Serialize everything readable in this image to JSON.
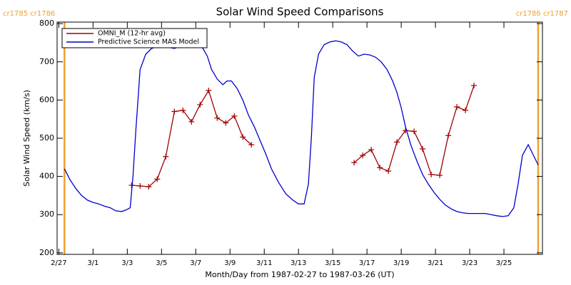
{
  "chart_data": {
    "type": "line",
    "title": "Solar Wind Speed Comparisons",
    "x_label": "Month/Day from 1987-02-27 to 1987-03-26 (UT)",
    "y_label": "Solar Wind Speed (km/s)",
    "xlim": [
      -0.1,
      28.25
    ],
    "ylim": [
      196,
      804
    ],
    "xticks": [
      {
        "value": 0,
        "label": "2/27"
      },
      {
        "value": 2,
        "label": "3/1"
      },
      {
        "value": 4,
        "label": "3/3"
      },
      {
        "value": 6,
        "label": "3/5"
      },
      {
        "value": 8,
        "label": "3/7"
      },
      {
        "value": 10,
        "label": "3/9"
      },
      {
        "value": 12,
        "label": "3/11"
      },
      {
        "value": 14,
        "label": "3/13"
      },
      {
        "value": 16,
        "label": "3/15"
      },
      {
        "value": 18,
        "label": "3/17"
      },
      {
        "value": 20,
        "label": "3/19"
      },
      {
        "value": 22,
        "label": "3/21"
      },
      {
        "value": 24,
        "label": "3/23"
      },
      {
        "value": 26,
        "label": "3/25"
      }
    ],
    "yticks": [
      200,
      300,
      400,
      500,
      600,
      700,
      800
    ],
    "legend": "upper left",
    "boundaries": [
      {
        "x": 0.33,
        "label": "cr1785 cr1786",
        "color": "#f0a030"
      },
      {
        "x": 28.0,
        "label": "cr1786 cr1787",
        "color": "#f0a030"
      }
    ],
    "series": [
      {
        "name": "OMNI_M (12-hr avg)",
        "color": "#a00000",
        "markers": true,
        "x": [
          4.25,
          4.75,
          5.25,
          5.75,
          6.25,
          6.75,
          7.25,
          7.75,
          8.25,
          8.75,
          9.25,
          9.75,
          10.25,
          10.75,
          11.25,
          14.25,
          17.25,
          17.75,
          18.25,
          18.75,
          19.25,
          19.75,
          20.25,
          20.75,
          21.25,
          21.75,
          22.25,
          22.75,
          23.25,
          23.75,
          24.25
        ],
        "values": [
          377,
          375,
          373,
          393,
          452,
          570,
          573,
          543,
          588,
          625,
          553,
          540,
          558,
          503,
          483,
          null,
          436,
          455,
          470,
          423,
          414,
          490,
          520,
          518,
          472,
          405,
          403,
          507,
          582,
          573,
          638
        ]
      },
      {
        "name": "Predictive Science MAS Model",
        "color": "#0000cc",
        "markers": false,
        "x": [
          0.33,
          0.67,
          1.0,
          1.33,
          1.67,
          2.0,
          2.33,
          2.67,
          3.0,
          3.33,
          3.67,
          3.92,
          4.17,
          4.33,
          4.5,
          4.75,
          5.08,
          5.42,
          5.75,
          6.08,
          6.42,
          6.75,
          7.08,
          7.42,
          7.75,
          8.08,
          8.42,
          8.67,
          8.92,
          9.25,
          9.58,
          9.83,
          10.08,
          10.42,
          10.75,
          11.08,
          11.42,
          11.75,
          12.08,
          12.42,
          12.83,
          13.25,
          13.67,
          14.0,
          14.33,
          14.58,
          14.75,
          14.92,
          15.17,
          15.5,
          15.83,
          16.17,
          16.5,
          16.83,
          17.17,
          17.5,
          17.83,
          18.17,
          18.5,
          18.83,
          19.17,
          19.5,
          19.75,
          20.0,
          20.25,
          20.58,
          20.92,
          21.25,
          21.58,
          21.92,
          22.25,
          22.58,
          22.92,
          23.25,
          23.58,
          23.92,
          24.25,
          24.58,
          24.92,
          25.25,
          25.58,
          25.92,
          26.25,
          26.58,
          26.83,
          27.08,
          27.42,
          27.67,
          28.0
        ],
        "values": [
          420,
          390,
          368,
          350,
          338,
          332,
          328,
          322,
          318,
          310,
          308,
          312,
          318,
          400,
          520,
          680,
          720,
          735,
          740,
          742,
          738,
          735,
          740,
          750,
          755,
          750,
          735,
          715,
          680,
          655,
          640,
          650,
          650,
          630,
          600,
          560,
          530,
          495,
          460,
          420,
          385,
          355,
          338,
          328,
          328,
          380,
          500,
          660,
          720,
          745,
          752,
          755,
          752,
          745,
          728,
          715,
          720,
          718,
          712,
          700,
          680,
          650,
          620,
          580,
          530,
          480,
          440,
          405,
          380,
          358,
          340,
          325,
          315,
          308,
          305,
          303,
          303,
          303,
          303,
          300,
          297,
          295,
          297,
          318,
          380,
          455,
          483,
          460,
          430
        ]
      }
    ]
  }
}
